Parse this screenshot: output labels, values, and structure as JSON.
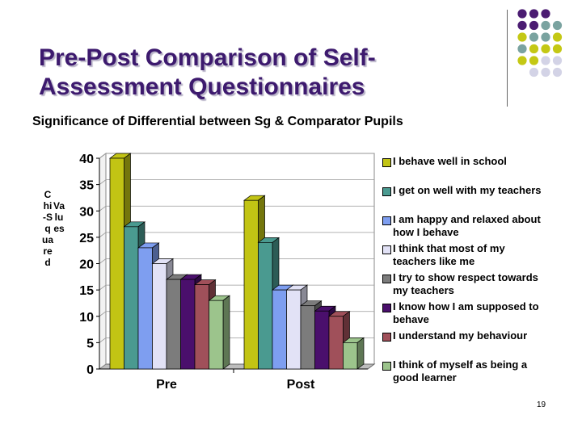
{
  "slide": {
    "title": "Pre-Post Comparison of Self-Assessment Questionnaires",
    "page_number": "19"
  },
  "decor": {
    "dot_colors": [
      "#4b1c72",
      "#c4c814",
      "#7aa3a0",
      "#d3d3e6"
    ]
  },
  "chart_data": {
    "type": "bar",
    "title": "Significance of Differential between Sg & Comparator Pupils",
    "ylabel": "Chi-Squared Values",
    "xlabel": "",
    "ylim": [
      0,
      40
    ],
    "yticks": [
      "0",
      "5",
      "10",
      "15",
      "20",
      "25",
      "30",
      "35",
      "40"
    ],
    "categories": [
      "Pre",
      "Post"
    ],
    "legend_position": "right",
    "grid": true,
    "series": [
      {
        "name": "I behave well in school",
        "color": "#c2c414",
        "values": [
          40,
          32
        ]
      },
      {
        "name": "I get on well with my teachers",
        "color": "#4a9a90",
        "values": [
          27,
          24
        ]
      },
      {
        "name": "I am happy and relaxed about how I behave",
        "color": "#7e9ef0",
        "values": [
          23,
          15
        ]
      },
      {
        "name": "I think that most of my teachers like me",
        "color": "#e2e2f6",
        "values": [
          20,
          15
        ]
      },
      {
        "name": "I try to show respect towards my teachers",
        "color": "#7c7c7c",
        "values": [
          17,
          12
        ]
      },
      {
        "name": "I know how I am supposed to behave",
        "color": "#4a0f6c",
        "values": [
          17,
          11
        ]
      },
      {
        "name": "I understand my behaviour",
        "color": "#a0505a",
        "values": [
          16,
          10
        ]
      },
      {
        "name": "I think of myself as being a good learner",
        "color": "#9cc48c",
        "values": [
          13,
          5
        ]
      }
    ]
  }
}
